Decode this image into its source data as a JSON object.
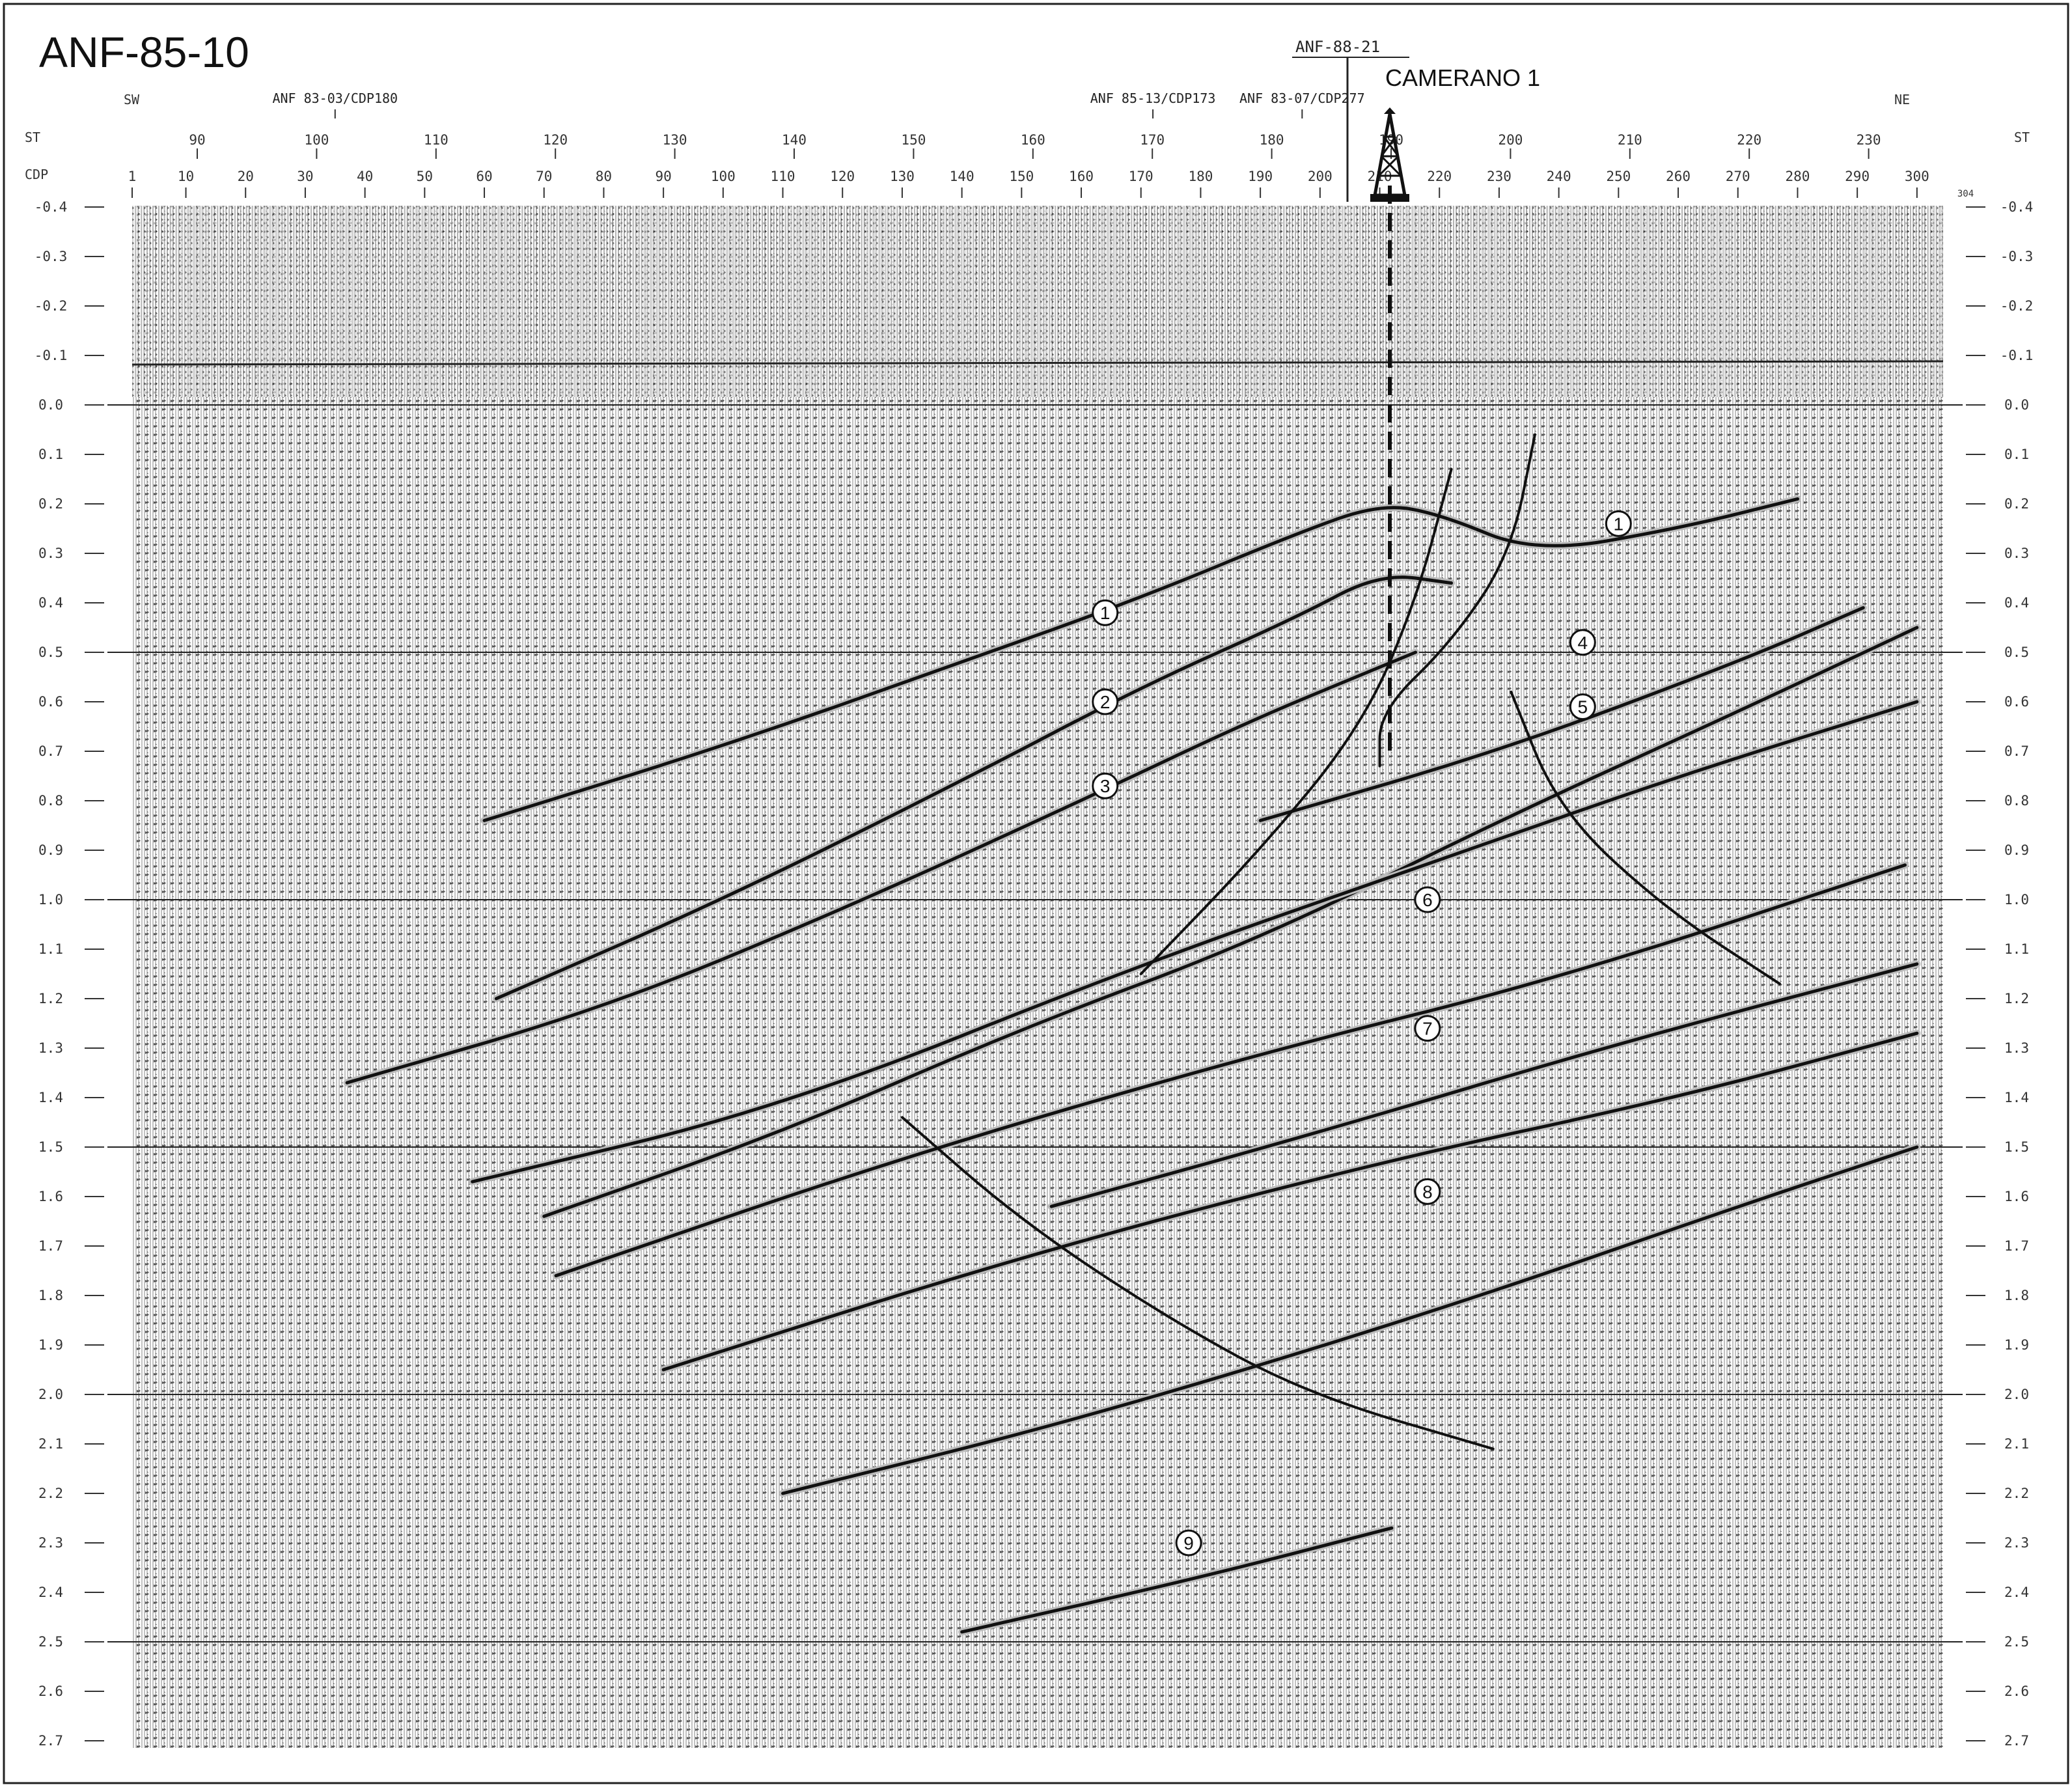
{
  "line_title": "ANF-85-10",
  "well": {
    "name": "CAMERANO 1",
    "crossing_line": "ANF-88-21"
  },
  "directions": {
    "left": "SW",
    "right": "NE"
  },
  "row_labels": {
    "station": "ST",
    "cdp": "CDP"
  },
  "line_ties": [
    {
      "label": "ANF 83-03/CDP180",
      "cdp": 35
    },
    {
      "label": "ANF 85-13/CDP173",
      "cdp": 172
    },
    {
      "label": "ANF 83-07/CDP277",
      "cdp": 197
    }
  ],
  "station_ticks": [
    "90",
    "100",
    "110",
    "120",
    "130",
    "140",
    "150",
    "160",
    "170",
    "180",
    "190",
    "200",
    "210",
    "220",
    "230"
  ],
  "cdp_ticks": [
    "1",
    "10",
    "20",
    "30",
    "40",
    "50",
    "60",
    "70",
    "80",
    "90",
    "100",
    "110",
    "120",
    "130",
    "140",
    "150",
    "160",
    "170",
    "180",
    "190",
    "200",
    "210",
    "220",
    "230",
    "240",
    "250",
    "260",
    "270",
    "280",
    "290",
    "300"
  ],
  "cdp_end": "304",
  "time_ticks": [
    "-0.4",
    "-0.3",
    "-0.2",
    "-0.1",
    "0.0",
    "0.1",
    "0.2",
    "0.3",
    "0.4",
    "0.5",
    "0.6",
    "0.7",
    "0.8",
    "0.9",
    "1.0",
    "1.1",
    "1.2",
    "1.3",
    "1.4",
    "1.5",
    "1.6",
    "1.7",
    "1.8",
    "1.9",
    "2.0",
    "2.1",
    "2.2",
    "2.3",
    "2.4",
    "2.5",
    "2.6",
    "2.7"
  ],
  "horizon_labels": [
    {
      "label": "1",
      "cdp": 164,
      "t": 0.42
    },
    {
      "label": "1",
      "cdp": 250,
      "t": 0.24
    },
    {
      "label": "2",
      "cdp": 164,
      "t": 0.6
    },
    {
      "label": "3",
      "cdp": 164,
      "t": 0.77
    },
    {
      "label": "4",
      "cdp": 244,
      "t": 0.48
    },
    {
      "label": "5",
      "cdp": 244,
      "t": 0.61
    },
    {
      "label": "6",
      "cdp": 218,
      "t": 1.0
    },
    {
      "label": "7",
      "cdp": 218,
      "t": 1.26
    },
    {
      "label": "8",
      "cdp": 218,
      "t": 1.59
    },
    {
      "label": "9",
      "cdp": 178,
      "t": 2.3
    }
  ],
  "horizons": [
    {
      "name": "1",
      "points": [
        [
          60,
          0.84
        ],
        [
          100,
          0.69
        ],
        [
          140,
          0.52
        ],
        [
          170,
          0.39
        ],
        [
          196,
          0.26
        ],
        [
          210,
          0.2
        ],
        [
          220,
          0.22
        ],
        [
          236,
          0.3
        ],
        [
          260,
          0.25
        ],
        [
          280,
          0.19
        ]
      ]
    },
    {
      "name": "2",
      "points": [
        [
          62,
          1.2
        ],
        [
          100,
          1.0
        ],
        [
          140,
          0.76
        ],
        [
          170,
          0.57
        ],
        [
          196,
          0.43
        ],
        [
          210,
          0.34
        ],
        [
          222,
          0.36
        ]
      ]
    },
    {
      "name": "3",
      "points": [
        [
          37,
          1.37
        ],
        [
          80,
          1.22
        ],
        [
          120,
          1.02
        ],
        [
          160,
          0.8
        ],
        [
          188,
          0.64
        ],
        [
          208,
          0.54
        ],
        [
          216,
          0.5
        ]
      ]
    },
    {
      "name": "4",
      "points": [
        [
          190,
          0.84
        ],
        [
          230,
          0.7
        ],
        [
          270,
          0.52
        ],
        [
          291,
          0.41
        ]
      ]
    },
    {
      "name": "5",
      "points": [
        [
          70,
          1.64
        ],
        [
          110,
          1.47
        ],
        [
          150,
          1.26
        ],
        [
          190,
          1.08
        ],
        [
          230,
          0.84
        ],
        [
          270,
          0.62
        ],
        [
          300,
          0.45
        ]
      ]
    },
    {
      "name": "6",
      "points": [
        [
          58,
          1.57
        ],
        [
          110,
          1.42
        ],
        [
          170,
          1.13
        ],
        [
          220,
          0.92
        ],
        [
          260,
          0.75
        ],
        [
          300,
          0.6
        ]
      ]
    },
    {
      "name": "7",
      "points": [
        [
          72,
          1.76
        ],
        [
          130,
          1.52
        ],
        [
          190,
          1.31
        ],
        [
          240,
          1.16
        ],
        [
          298,
          0.93
        ]
      ]
    },
    {
      "name": "7b",
      "points": [
        [
          155,
          1.62
        ],
        [
          200,
          1.47
        ],
        [
          250,
          1.29
        ],
        [
          300,
          1.13
        ]
      ]
    },
    {
      "name": "8",
      "points": [
        [
          90,
          1.95
        ],
        [
          150,
          1.72
        ],
        [
          210,
          1.53
        ],
        [
          260,
          1.4
        ],
        [
          300,
          1.27
        ]
      ]
    },
    {
      "name": "8b",
      "points": [
        [
          110,
          2.2
        ],
        [
          160,
          2.05
        ],
        [
          220,
          1.83
        ],
        [
          270,
          1.62
        ],
        [
          300,
          1.5
        ]
      ]
    },
    {
      "name": "9",
      "points": [
        [
          140,
          2.48
        ],
        [
          180,
          2.37
        ],
        [
          212,
          2.27
        ]
      ]
    }
  ],
  "faults": [
    {
      "points": [
        [
          222,
          0.13
        ],
        [
          216,
          0.4
        ],
        [
          207,
          0.65
        ],
        [
          190,
          0.9
        ],
        [
          170,
          1.15
        ]
      ]
    },
    {
      "points": [
        [
          236,
          0.06
        ],
        [
          232,
          0.3
        ],
        [
          222,
          0.48
        ],
        [
          210,
          0.62
        ],
        [
          210,
          0.73
        ]
      ]
    },
    {
      "points": [
        [
          232,
          0.58
        ],
        [
          240,
          0.82
        ],
        [
          258,
          1.02
        ],
        [
          277,
          1.17
        ]
      ]
    },
    {
      "points": [
        [
          130,
          1.44
        ],
        [
          150,
          1.65
        ],
        [
          175,
          1.85
        ],
        [
          198,
          2.0
        ],
        [
          229,
          2.11
        ]
      ]
    }
  ]
}
